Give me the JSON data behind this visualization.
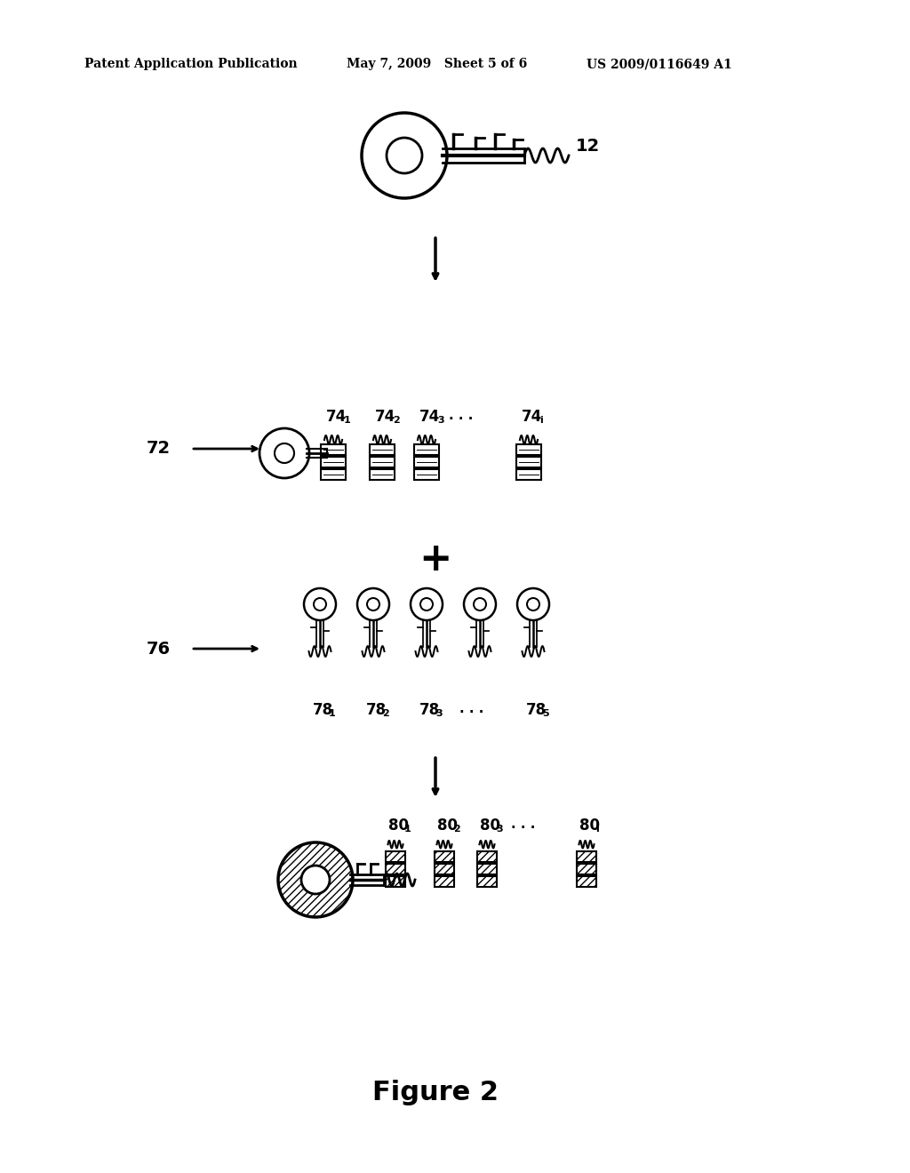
{
  "bg_color": "#ffffff",
  "header_left": "Patent Application Publication",
  "header_mid": "May 7, 2009   Sheet 5 of 6",
  "header_right": "US 2009/0116649 A1",
  "figure_caption": "Figure 2",
  "label_12": "12",
  "label_72": "72",
  "label_76": "76",
  "text_color": "#000000",
  "line_color": "#000000"
}
